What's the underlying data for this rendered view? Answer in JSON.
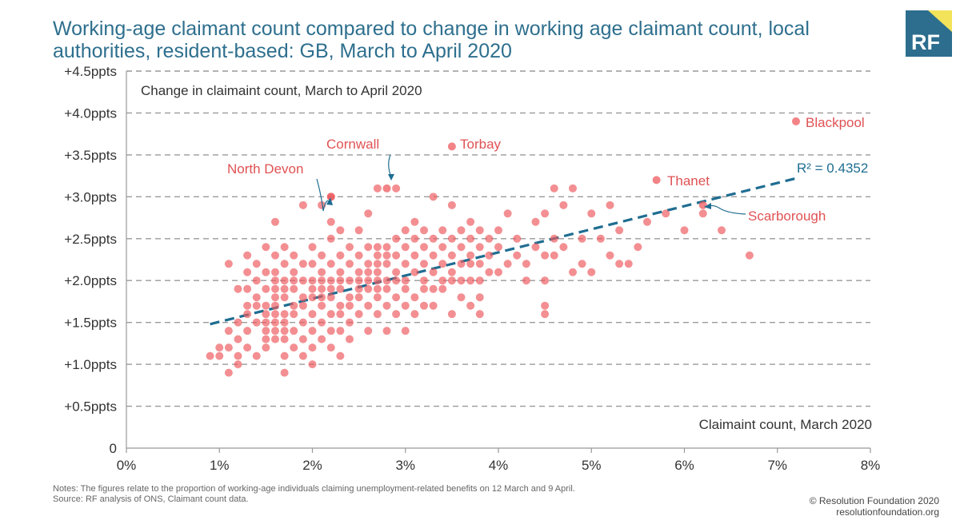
{
  "header": {
    "title_line1": "Working-age claimant count compared to change in working age claimant count, local",
    "title_line2": "authorities, resident-based: GB, March to April 2020",
    "logo_text": "RF"
  },
  "footer": {
    "notes": "Notes: The figures relate to the proportion of working-age individuals claiming unemployment-related benefits on 12 March and 9 April.",
    "source": "Source: RF analysis of ONS, Claimant count data.",
    "copyright": "© Resolution Foundation 2020",
    "website": "resolutionfoundation.org"
  },
  "colors": {
    "title": "#2e6f8e",
    "points": "#ee5a5e",
    "labels": "#e05254",
    "trend": "#1f6d91",
    "logo_blue": "#2d6e8e",
    "logo_yellow": "#f3e35a"
  },
  "chart_data": {
    "type": "scatter",
    "title": "Working-age claimant count compared to change in working age claimant count, local authorities, resident-based: GB, March to April 2020",
    "xlabel": "Claimaint count, March 2020",
    "ylabel": "Change in claimaint count, March to April 2020",
    "xlim": [
      0,
      8
    ],
    "ylim": [
      0,
      4.5
    ],
    "x_ticks": [
      0,
      1,
      2,
      3,
      4,
      5,
      6,
      7,
      8
    ],
    "x_tick_labels": [
      "0%",
      "1%",
      "2%",
      "3%",
      "4%",
      "5%",
      "6%",
      "7%",
      "8%"
    ],
    "y_ticks": [
      0,
      0.5,
      1.0,
      1.5,
      2.0,
      2.5,
      3.0,
      3.5,
      4.0,
      4.5
    ],
    "y_tick_labels": [
      "0",
      "+0.5ppts",
      "+1.0ppts",
      "+1.5ppts",
      "+2.0ppts",
      "+2.5ppts",
      "+3.0ppts",
      "+3.5ppts",
      "+4.0ppts",
      "+4.5ppts"
    ],
    "grid": "horizontal dashed",
    "trendline": {
      "x": [
        0.9,
        7.2
      ],
      "y": [
        1.48,
        3.22
      ],
      "label": "R² = 0.4352"
    },
    "series": [
      {
        "name": "Local authorities",
        "points": [
          [
            0.9,
            1.1
          ],
          [
            1.0,
            1.1
          ],
          [
            1.0,
            1.2
          ],
          [
            1.1,
            1.2
          ],
          [
            1.1,
            1.4
          ],
          [
            1.1,
            0.9
          ],
          [
            1.1,
            2.2
          ],
          [
            1.2,
            1.0
          ],
          [
            1.2,
            1.1
          ],
          [
            1.2,
            1.3
          ],
          [
            1.2,
            1.5
          ],
          [
            1.2,
            1.9
          ],
          [
            1.3,
            1.2
          ],
          [
            1.3,
            1.4
          ],
          [
            1.3,
            1.6
          ],
          [
            1.3,
            1.7
          ],
          [
            1.3,
            1.9
          ],
          [
            1.3,
            2.1
          ],
          [
            1.3,
            2.3
          ],
          [
            1.4,
            1.1
          ],
          [
            1.4,
            1.5
          ],
          [
            1.4,
            1.7
          ],
          [
            1.4,
            1.8
          ],
          [
            1.4,
            2.0
          ],
          [
            1.4,
            2.2
          ],
          [
            1.5,
            1.2
          ],
          [
            1.5,
            1.3
          ],
          [
            1.5,
            1.4
          ],
          [
            1.5,
            1.5
          ],
          [
            1.5,
            1.6
          ],
          [
            1.5,
            1.7
          ],
          [
            1.5,
            1.9
          ],
          [
            1.5,
            2.1
          ],
          [
            1.5,
            2.4
          ],
          [
            1.6,
            1.3
          ],
          [
            1.6,
            1.4
          ],
          [
            1.6,
            1.5
          ],
          [
            1.6,
            1.6
          ],
          [
            1.6,
            1.7
          ],
          [
            1.6,
            1.8
          ],
          [
            1.6,
            1.9
          ],
          [
            1.6,
            2.0
          ],
          [
            1.6,
            2.1
          ],
          [
            1.6,
            2.3
          ],
          [
            1.6,
            2.7
          ],
          [
            1.7,
            0.9
          ],
          [
            1.7,
            1.1
          ],
          [
            1.7,
            1.3
          ],
          [
            1.7,
            1.4
          ],
          [
            1.7,
            1.5
          ],
          [
            1.7,
            1.6
          ],
          [
            1.7,
            1.8
          ],
          [
            1.7,
            1.9
          ],
          [
            1.7,
            2.0
          ],
          [
            1.7,
            2.2
          ],
          [
            1.7,
            2.4
          ],
          [
            1.8,
            1.2
          ],
          [
            1.8,
            1.4
          ],
          [
            1.8,
            1.6
          ],
          [
            1.8,
            1.7
          ],
          [
            1.8,
            1.9
          ],
          [
            1.8,
            2.0
          ],
          [
            1.8,
            2.1
          ],
          [
            1.8,
            2.3
          ],
          [
            1.9,
            1.1
          ],
          [
            1.9,
            1.3
          ],
          [
            1.9,
            1.5
          ],
          [
            1.9,
            1.7
          ],
          [
            1.9,
            1.8
          ],
          [
            1.9,
            2.0
          ],
          [
            1.9,
            2.2
          ],
          [
            1.9,
            2.9
          ],
          [
            2.0,
            1.0
          ],
          [
            2.0,
            1.2
          ],
          [
            2.0,
            1.4
          ],
          [
            2.0,
            1.6
          ],
          [
            2.0,
            1.8
          ],
          [
            2.0,
            1.9
          ],
          [
            2.0,
            2.0
          ],
          [
            2.0,
            2.2
          ],
          [
            2.0,
            2.4
          ],
          [
            2.1,
            1.3
          ],
          [
            2.1,
            1.5
          ],
          [
            2.1,
            1.7
          ],
          [
            2.1,
            1.8
          ],
          [
            2.1,
            1.9
          ],
          [
            2.1,
            2.0
          ],
          [
            2.1,
            2.1
          ],
          [
            2.1,
            2.3
          ],
          [
            2.1,
            2.9
          ],
          [
            2.2,
            1.2
          ],
          [
            2.2,
            1.4
          ],
          [
            2.2,
            1.6
          ],
          [
            2.2,
            1.8
          ],
          [
            2.2,
            1.9
          ],
          [
            2.2,
            2.0
          ],
          [
            2.2,
            2.2
          ],
          [
            2.2,
            2.5
          ],
          [
            2.2,
            2.7
          ],
          [
            2.2,
            3.0
          ],
          [
            2.3,
            1.1
          ],
          [
            2.3,
            1.4
          ],
          [
            2.3,
            1.6
          ],
          [
            2.3,
            1.7
          ],
          [
            2.3,
            1.9
          ],
          [
            2.3,
            2.0
          ],
          [
            2.3,
            2.1
          ],
          [
            2.3,
            2.3
          ],
          [
            2.3,
            2.6
          ],
          [
            2.4,
            1.3
          ],
          [
            2.4,
            1.5
          ],
          [
            2.4,
            1.7
          ],
          [
            2.4,
            1.8
          ],
          [
            2.4,
            2.0
          ],
          [
            2.4,
            2.2
          ],
          [
            2.4,
            2.4
          ],
          [
            2.5,
            1.6
          ],
          [
            2.5,
            1.8
          ],
          [
            2.5,
            1.9
          ],
          [
            2.5,
            2.0
          ],
          [
            2.5,
            2.1
          ],
          [
            2.5,
            2.3
          ],
          [
            2.5,
            2.6
          ],
          [
            2.6,
            1.4
          ],
          [
            2.6,
            1.7
          ],
          [
            2.6,
            1.9
          ],
          [
            2.6,
            2.0
          ],
          [
            2.6,
            2.1
          ],
          [
            2.6,
            2.2
          ],
          [
            2.6,
            2.4
          ],
          [
            2.6,
            2.8
          ],
          [
            2.7,
            1.6
          ],
          [
            2.7,
            1.8
          ],
          [
            2.7,
            1.9
          ],
          [
            2.7,
            2.0
          ],
          [
            2.7,
            2.1
          ],
          [
            2.7,
            2.2
          ],
          [
            2.7,
            2.3
          ],
          [
            2.7,
            2.4
          ],
          [
            2.7,
            3.1
          ],
          [
            2.8,
            1.4
          ],
          [
            2.8,
            1.7
          ],
          [
            2.8,
            1.9
          ],
          [
            2.8,
            2.0
          ],
          [
            2.8,
            2.2
          ],
          [
            2.8,
            2.3
          ],
          [
            2.8,
            2.4
          ],
          [
            2.9,
            1.6
          ],
          [
            2.9,
            1.8
          ],
          [
            2.9,
            2.0
          ],
          [
            2.9,
            2.1
          ],
          [
            2.9,
            2.3
          ],
          [
            2.9,
            2.5
          ],
          [
            2.9,
            3.1
          ],
          [
            3.0,
            1.4
          ],
          [
            3.0,
            1.7
          ],
          [
            3.0,
            1.9
          ],
          [
            3.0,
            2.0
          ],
          [
            3.0,
            2.2
          ],
          [
            3.0,
            2.4
          ],
          [
            3.0,
            2.6
          ],
          [
            3.1,
            1.6
          ],
          [
            3.1,
            1.8
          ],
          [
            3.1,
            2.1
          ],
          [
            3.1,
            2.3
          ],
          [
            3.1,
            2.5
          ],
          [
            3.1,
            2.7
          ],
          [
            3.2,
            1.7
          ],
          [
            3.2,
            1.9
          ],
          [
            3.2,
            2.0
          ],
          [
            3.2,
            2.2
          ],
          [
            3.2,
            2.4
          ],
          [
            3.2,
            2.6
          ],
          [
            3.3,
            1.7
          ],
          [
            3.3,
            1.9
          ],
          [
            3.3,
            2.1
          ],
          [
            3.3,
            2.3
          ],
          [
            3.3,
            2.5
          ],
          [
            3.3,
            3.0
          ],
          [
            3.4,
            1.9
          ],
          [
            3.4,
            2.0
          ],
          [
            3.4,
            2.2
          ],
          [
            3.4,
            2.4
          ],
          [
            3.4,
            2.6
          ],
          [
            3.5,
            1.6
          ],
          [
            3.5,
            2.0
          ],
          [
            3.5,
            2.1
          ],
          [
            3.5,
            2.3
          ],
          [
            3.5,
            2.5
          ],
          [
            3.5,
            2.9
          ],
          [
            3.6,
            1.8
          ],
          [
            3.6,
            2.0
          ],
          [
            3.6,
            2.2
          ],
          [
            3.6,
            2.4
          ],
          [
            3.6,
            2.6
          ],
          [
            3.7,
            1.7
          ],
          [
            3.7,
            2.0
          ],
          [
            3.7,
            2.2
          ],
          [
            3.7,
            2.3
          ],
          [
            3.7,
            2.5
          ],
          [
            3.7,
            2.7
          ],
          [
            3.8,
            1.6
          ],
          [
            3.8,
            1.8
          ],
          [
            3.8,
            2.0
          ],
          [
            3.8,
            2.2
          ],
          [
            3.8,
            2.4
          ],
          [
            3.8,
            2.6
          ],
          [
            3.9,
            2.1
          ],
          [
            3.9,
            2.3
          ],
          [
            3.9,
            2.5
          ],
          [
            4.0,
            2.1
          ],
          [
            4.0,
            2.4
          ],
          [
            4.0,
            2.6
          ],
          [
            4.1,
            2.2
          ],
          [
            4.1,
            2.8
          ],
          [
            4.2,
            2.3
          ],
          [
            4.2,
            2.5
          ],
          [
            4.3,
            2.0
          ],
          [
            4.3,
            2.2
          ],
          [
            4.4,
            2.7
          ],
          [
            4.4,
            2.4
          ],
          [
            4.5,
            1.6
          ],
          [
            4.5,
            1.7
          ],
          [
            4.5,
            2.0
          ],
          [
            4.5,
            2.3
          ],
          [
            4.5,
            2.8
          ],
          [
            4.6,
            2.3
          ],
          [
            4.6,
            2.5
          ],
          [
            4.6,
            3.1
          ],
          [
            4.7,
            2.4
          ],
          [
            4.7,
            2.9
          ],
          [
            4.8,
            2.1
          ],
          [
            4.8,
            3.1
          ],
          [
            4.9,
            2.2
          ],
          [
            4.9,
            2.5
          ],
          [
            5.0,
            2.1
          ],
          [
            5.0,
            2.8
          ],
          [
            5.1,
            2.5
          ],
          [
            5.2,
            2.3
          ],
          [
            5.2,
            2.9
          ],
          [
            5.3,
            2.2
          ],
          [
            5.3,
            2.6
          ],
          [
            5.4,
            2.2
          ],
          [
            5.5,
            2.4
          ],
          [
            5.6,
            2.7
          ],
          [
            5.8,
            2.8
          ],
          [
            6.0,
            2.6
          ],
          [
            6.2,
            2.8
          ],
          [
            6.4,
            2.6
          ],
          [
            6.7,
            2.3
          ]
        ]
      },
      {
        "name": "Named local authorities",
        "points": [
          {
            "name": "Blackpool",
            "x": 7.2,
            "y": 3.9
          },
          {
            "name": "Torbay",
            "x": 3.5,
            "y": 3.6
          },
          {
            "name": "Thanet",
            "x": 5.7,
            "y": 3.2
          },
          {
            "name": "Cornwall",
            "x": 2.8,
            "y": 3.1
          },
          {
            "name": "North Devon",
            "x": 2.2,
            "y": 3.0
          },
          {
            "name": "Scarborough",
            "x": 6.2,
            "y": 2.9
          }
        ]
      }
    ]
  }
}
